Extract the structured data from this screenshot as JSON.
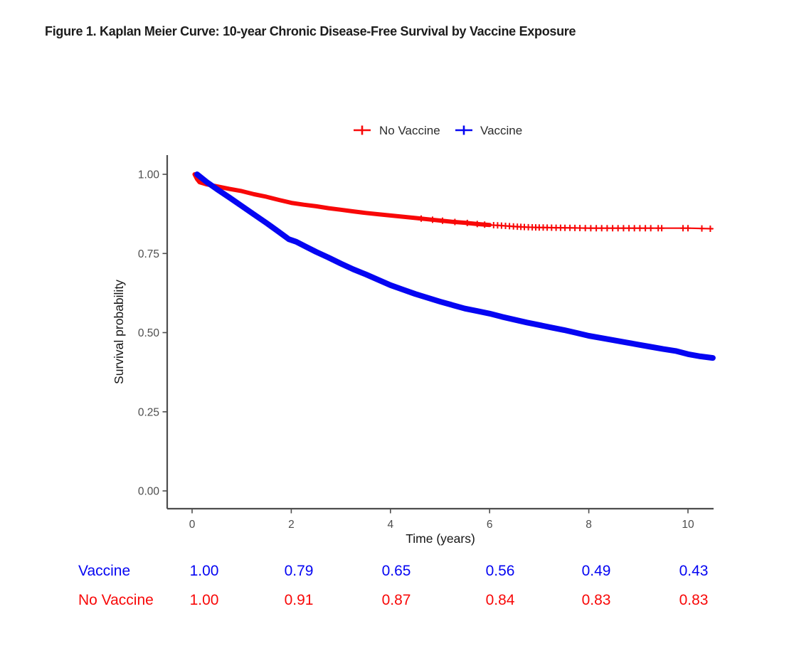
{
  "title": "Figure 1. Kaplan Meier Curve: 10-year Chronic Disease-Free Survival by Vaccine Exposure",
  "chart_data": {
    "type": "line",
    "subtype": "kaplan-meier-survival",
    "xlabel": "Time (years)",
    "ylabel": "Survival probability",
    "xlim": [
      -0.5,
      10.55
    ],
    "ylim": [
      0,
      1.0
    ],
    "x_ticks": [
      0,
      2,
      4,
      6,
      8,
      10
    ],
    "x_tick_labels": [
      "0",
      "2",
      "4",
      "6",
      "8",
      "10"
    ],
    "y_ticks": [
      1.0,
      0.75,
      0.5,
      0.25,
      0.0
    ],
    "y_tick_labels": [
      "1.00",
      "0.75",
      "0.50",
      "0.25",
      "0.00"
    ],
    "grid": false,
    "legend_position": "top-center",
    "series": [
      {
        "name": "No Vaccine",
        "color": "#F80808",
        "thick_until_x": 6.0,
        "points": [
          [
            0.05,
            1.0
          ],
          [
            0.1,
            0.985
          ],
          [
            0.15,
            0.975
          ],
          [
            0.3,
            0.968
          ],
          [
            0.5,
            0.962
          ],
          [
            0.75,
            0.954
          ],
          [
            1.0,
            0.947
          ],
          [
            1.25,
            0.937
          ],
          [
            1.5,
            0.929
          ],
          [
            1.75,
            0.919
          ],
          [
            2.0,
            0.91
          ],
          [
            2.25,
            0.904
          ],
          [
            2.5,
            0.899
          ],
          [
            2.75,
            0.893
          ],
          [
            3.0,
            0.888
          ],
          [
            3.25,
            0.883
          ],
          [
            3.5,
            0.878
          ],
          [
            3.75,
            0.874
          ],
          [
            4.0,
            0.87
          ],
          [
            4.25,
            0.866
          ],
          [
            4.5,
            0.862
          ],
          [
            4.75,
            0.858
          ],
          [
            5.0,
            0.854
          ],
          [
            5.25,
            0.85
          ],
          [
            5.5,
            0.847
          ],
          [
            5.75,
            0.843
          ],
          [
            6.0,
            0.84
          ],
          [
            6.25,
            0.838
          ],
          [
            6.5,
            0.835
          ],
          [
            6.75,
            0.833
          ],
          [
            7.0,
            0.832
          ],
          [
            7.5,
            0.831
          ],
          [
            8.0,
            0.83
          ],
          [
            9.0,
            0.83
          ],
          [
            10.0,
            0.83
          ],
          [
            10.5,
            0.828
          ]
        ],
        "censor_marks_x": [
          4.62,
          4.85,
          5.05,
          5.3,
          5.55,
          5.75,
          5.9,
          6.08,
          6.16,
          6.24,
          6.32,
          6.4,
          6.48,
          6.56,
          6.63,
          6.7,
          6.78,
          6.86,
          6.93,
          7.0,
          7.08,
          7.16,
          7.25,
          7.34,
          7.43,
          7.52,
          7.62,
          7.72,
          7.82,
          7.93,
          8.04,
          8.15,
          8.26,
          8.37,
          8.48,
          8.59,
          8.7,
          8.81,
          8.92,
          9.03,
          9.14,
          9.25,
          9.4,
          9.47,
          9.9,
          10.0,
          10.28,
          10.45
        ]
      },
      {
        "name": "Vaccine",
        "color": "#0505F2",
        "points": [
          [
            0.1,
            1.0
          ],
          [
            0.3,
            0.975
          ],
          [
            0.5,
            0.953
          ],
          [
            0.75,
            0.927
          ],
          [
            1.0,
            0.9
          ],
          [
            1.25,
            0.873
          ],
          [
            1.5,
            0.846
          ],
          [
            1.75,
            0.818
          ],
          [
            1.95,
            0.795
          ],
          [
            2.1,
            0.787
          ],
          [
            2.3,
            0.771
          ],
          [
            2.5,
            0.755
          ],
          [
            2.75,
            0.737
          ],
          [
            3.0,
            0.718
          ],
          [
            3.25,
            0.7
          ],
          [
            3.5,
            0.684
          ],
          [
            3.75,
            0.667
          ],
          [
            4.0,
            0.65
          ],
          [
            4.25,
            0.636
          ],
          [
            4.5,
            0.622
          ],
          [
            4.75,
            0.61
          ],
          [
            5.0,
            0.598
          ],
          [
            5.25,
            0.587
          ],
          [
            5.5,
            0.576
          ],
          [
            5.75,
            0.568
          ],
          [
            6.0,
            0.56
          ],
          [
            6.25,
            0.55
          ],
          [
            6.5,
            0.541
          ],
          [
            6.75,
            0.532
          ],
          [
            7.0,
            0.524
          ],
          [
            7.25,
            0.516
          ],
          [
            7.5,
            0.508
          ],
          [
            7.75,
            0.499
          ],
          [
            8.0,
            0.49
          ],
          [
            8.25,
            0.483
          ],
          [
            8.5,
            0.476
          ],
          [
            8.75,
            0.469
          ],
          [
            9.0,
            0.462
          ],
          [
            9.25,
            0.455
          ],
          [
            9.5,
            0.448
          ],
          [
            9.75,
            0.442
          ],
          [
            10.0,
            0.432
          ],
          [
            10.25,
            0.425
          ],
          [
            10.5,
            0.42
          ]
        ]
      }
    ]
  },
  "legend": {
    "items": [
      {
        "label": "No Vaccine",
        "color": "#F80808"
      },
      {
        "label": "Vaccine",
        "color": "#0505F2"
      }
    ]
  },
  "summary_table": {
    "times": [
      0,
      2,
      4,
      6,
      8,
      10
    ],
    "rows": [
      {
        "label": "Vaccine",
        "color": "#0505F2",
        "values": [
          "1.00",
          "0.79",
          "0.65",
          "0.56",
          "0.49",
          "0.43"
        ]
      },
      {
        "label": "No Vaccine",
        "color": "#F80808",
        "values": [
          "1.00",
          "0.91",
          "0.87",
          "0.84",
          "0.83",
          "0.83"
        ]
      }
    ]
  }
}
